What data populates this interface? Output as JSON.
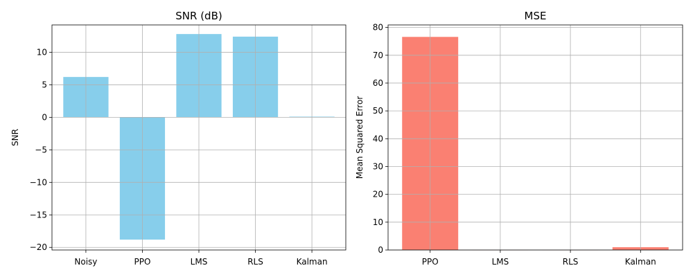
{
  "chart_data": [
    {
      "type": "bar",
      "title": "SNR (dB)",
      "xlabel": "",
      "ylabel": "SNR",
      "categories": [
        "Noisy",
        "PPO",
        "LMS",
        "RLS",
        "Kalman"
      ],
      "values": [
        6.2,
        -18.8,
        12.8,
        12.4,
        0.1
      ],
      "ylim": [
        -20.4,
        14.2
      ],
      "yticks": [
        -20,
        -15,
        -10,
        -5,
        0,
        5,
        10
      ],
      "ytick_labels": [
        "−20",
        "−15",
        "−10",
        "−5",
        "0",
        "5",
        "10"
      ],
      "color": "#87ceeb",
      "grid": true
    },
    {
      "type": "bar",
      "title": "MSE",
      "xlabel": "",
      "ylabel": "Mean Squared Error",
      "categories": [
        "PPO",
        "LMS",
        "RLS",
        "Kalman"
      ],
      "values": [
        76.6,
        0.05,
        0.05,
        1.0
      ],
      "ylim": [
        0,
        80.9
      ],
      "yticks": [
        0,
        10,
        20,
        30,
        40,
        50,
        60,
        70,
        80
      ],
      "ytick_labels": [
        "0",
        "10",
        "20",
        "30",
        "40",
        "50",
        "60",
        "70",
        "80"
      ],
      "color": "#fa8072",
      "grid": true
    }
  ]
}
